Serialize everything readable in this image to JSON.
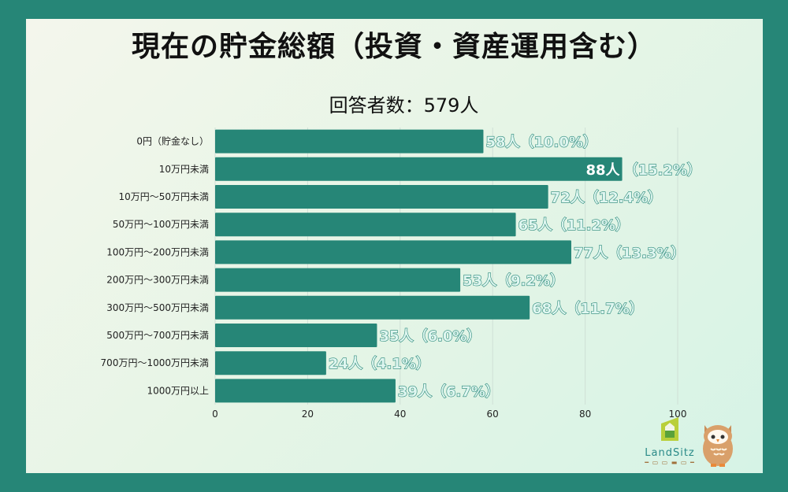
{
  "title": "現在の貯金総額（投資・資産運用含む）",
  "subtitle": "回答者数：579人",
  "colors": {
    "frame": "#268677",
    "bar": "#268677",
    "label_fill": "#dff6f0"
  },
  "logo": {
    "text": "LandSitz",
    "icon": "house-logo-icon",
    "mascot": "owl-mascot"
  },
  "chart_data": {
    "type": "bar",
    "orientation": "horizontal",
    "title": "現在の貯金総額（投資・資産運用含む）",
    "subtitle": "回答者数：579人",
    "categories": [
      "0円（貯金なし）",
      "10万円未満",
      "10万円〜50万円未満",
      "50万円〜100万円未満",
      "100万円〜200万円未満",
      "200万円〜300万円未満",
      "300万円〜500万円未満",
      "500万円〜700万円未満",
      "700万円〜1000万円未満",
      "1000万円以上"
    ],
    "values": [
      58,
      88,
      72,
      65,
      77,
      53,
      68,
      35,
      24,
      39
    ],
    "data_labels": [
      "58人（10.0%）",
      "88人（15.2%）",
      "72人（12.4%）",
      "65人（11.2%）",
      "77人（13.3%）",
      "53人（9.2%）",
      "68人（11.7%）",
      "35人（6.0%）",
      "24人（4.1%）",
      "39人（6.7%）"
    ],
    "xlim": [
      0,
      100
    ],
    "xticks": [
      "0",
      "20",
      "40",
      "60",
      "80",
      "100"
    ],
    "grid": true,
    "legend": "none"
  }
}
